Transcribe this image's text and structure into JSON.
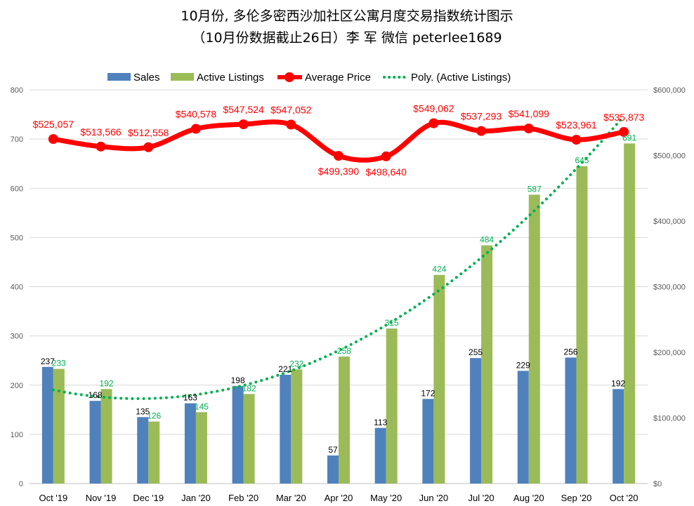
{
  "chart_data": {
    "type": "bar",
    "title": "10月份, 多伦多密西沙加社区公寓月度交易指数统计图示",
    "subtitle": "（10月份数据截止26日）李 军  微信  peterlee1689",
    "categories": [
      "Oct '19",
      "Nov '19",
      "Dec '19",
      "Jan '20",
      "Feb '20",
      "Mar '20",
      "Apr '20",
      "May '20",
      "Jun '20",
      "Jul '20",
      "Aug '20",
      "Sep '20",
      "Oct '20"
    ],
    "series": [
      {
        "name": "Sales",
        "type": "bar",
        "axis": "left",
        "color": "#4f81bd",
        "values": [
          237,
          168,
          135,
          163,
          198,
          221,
          57,
          113,
          172,
          255,
          229,
          256,
          192
        ],
        "labels": [
          "237",
          "168",
          "135",
          "163",
          "198",
          "221",
          "57",
          "113",
          "172",
          "255",
          "229",
          "256",
          "192"
        ]
      },
      {
        "name": "Active Listings",
        "type": "bar",
        "axis": "left",
        "color": "#9bbb59",
        "values": [
          233,
          192,
          126,
          145,
          182,
          232,
          258,
          315,
          424,
          484,
          587,
          645,
          691
        ],
        "labels": [
          "233",
          "192",
          "126",
          "145",
          "182",
          "232",
          "258",
          "315",
          "424",
          "484",
          "587",
          "645",
          "691"
        ]
      },
      {
        "name": "Average Price",
        "type": "line",
        "axis": "right",
        "color": "#ff0000",
        "values": [
          525057,
          513566,
          512558,
          540578,
          547524,
          547052,
          499390,
          498640,
          549062,
          537293,
          541099,
          523961,
          535873
        ],
        "labels": [
          "$525,057",
          "$513,566",
          "$512,558",
          "$540,578",
          "$547,524",
          "$547,052",
          "$499,390",
          "$498,640",
          "$549,062",
          "$537,293",
          "$541,099",
          "$523,961",
          "$535,873"
        ]
      },
      {
        "name": "Poly. (Active Listings)",
        "type": "trendline",
        "axis": "left",
        "color": "#00b050"
      }
    ],
    "y_left": {
      "min": 0,
      "max": 800,
      "ticks": [
        "0",
        "100",
        "200",
        "300",
        "400",
        "500",
        "600",
        "700",
        "800"
      ]
    },
    "y_right": {
      "min": 0,
      "max": 600000,
      "ticks": [
        "$0",
        "$100,000",
        "$200,000",
        "$300,000",
        "$400,000",
        "$500,000",
        "$600,000"
      ]
    },
    "grid": true,
    "legend_position": "top"
  }
}
